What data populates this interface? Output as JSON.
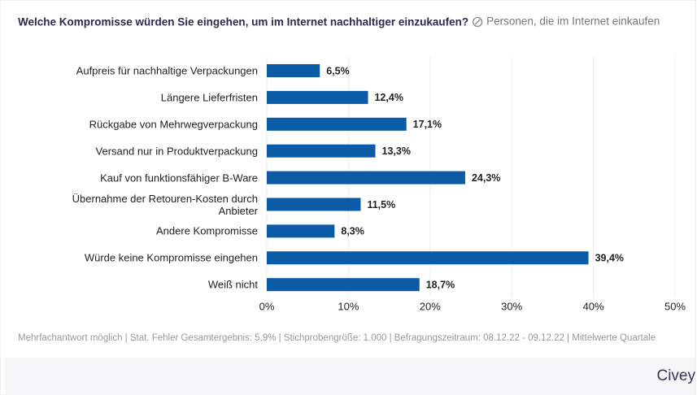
{
  "chart_data": {
    "type": "bar",
    "orientation": "horizontal",
    "title": "Welche Kompromisse würden Sie eingehen, um im Internet nachhaltiger einzukaufen?",
    "subtitle": "Personen, die im Internet einkaufen",
    "categories": [
      "Aufpreis für nachhaltige Verpackungen",
      "Längere Lieferfristen",
      "Rückgabe von Mehrwegverpackung",
      "Versand nur in Produktverpackung",
      "Kauf von funktionsfähiger B-Ware",
      "Übernahme der Retouren-Kosten durch Anbieter",
      "Andere Kompromisse",
      "Würde keine Kompromisse eingehen",
      "Weiß nicht"
    ],
    "values": [
      6.5,
      12.4,
      17.1,
      13.3,
      24.3,
      11.5,
      8.3,
      39.4,
      18.7
    ],
    "value_labels": [
      "6,5%",
      "12,4%",
      "17,1%",
      "13,3%",
      "24,3%",
      "11,5%",
      "8,3%",
      "39,4%",
      "18,7%"
    ],
    "color": "#0b5ba6",
    "xlim": [
      0,
      50
    ],
    "xticks": [
      {
        "value": 0,
        "label": "0%"
      },
      {
        "value": 10,
        "label": "10%"
      },
      {
        "value": 20,
        "label": "20%"
      },
      {
        "value": 30,
        "label": "30%"
      },
      {
        "value": 40,
        "label": "40%"
      },
      {
        "value": 50,
        "label": "50%"
      }
    ],
    "grid": true,
    "footnote": "Mehrfachantwort möglich | Stat. Fehler Gesamtergebnis: 5,9% | Stichprobengröße: 1.000 | Befragungszeitraum: 08.12.22 - 09.12.22 | Mittelwerte Quartale",
    "brand": "Civey"
  }
}
